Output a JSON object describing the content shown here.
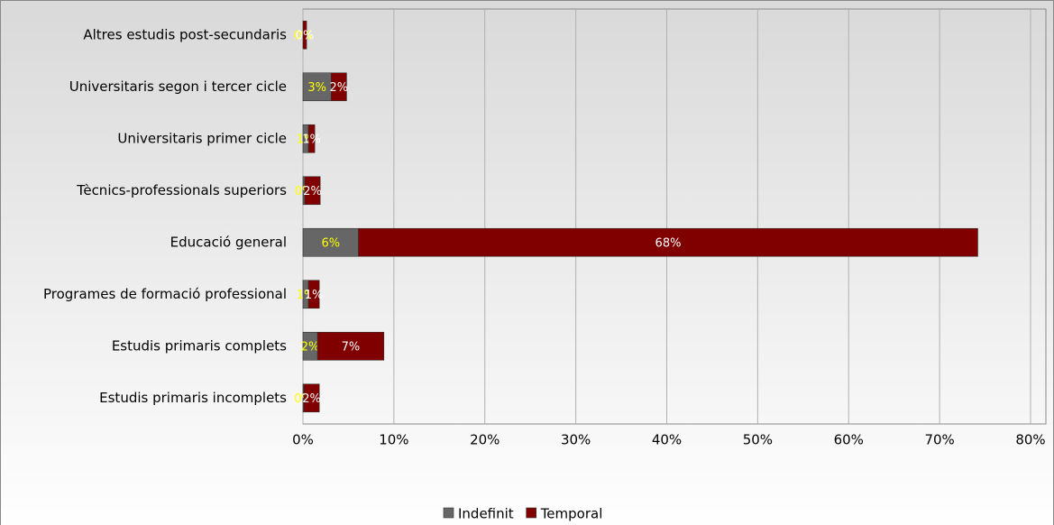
{
  "chart_data": {
    "type": "stacked-barh",
    "categories": [
      "Altres estudis post-secundaris",
      "Universitaris segon i tercer cicle",
      "Universitaris primer cicle",
      "Tècnics-professionals superiors",
      "Educació general",
      "Programes de formació professional",
      "Estudis primaris complets",
      "Estudis primaris incomplets"
    ],
    "series": [
      {
        "name": "Indefinit",
        "color": "#666666",
        "label_color": "#ffff00",
        "values": [
          0.0,
          3.1,
          0.6,
          0.2,
          6.1,
          0.6,
          1.6,
          0.1
        ],
        "value_labels": [
          "0%",
          "3%",
          "1%",
          "0%",
          "6%",
          "1%",
          "2%",
          "0%"
        ]
      },
      {
        "name": "Temporal",
        "color": "#800000",
        "label_color": "#ffffff",
        "values": [
          0.4,
          1.7,
          0.7,
          1.7,
          68.1,
          1.2,
          7.3,
          1.7
        ],
        "value_labels": [
          "0%",
          "2%",
          "1%",
          "2%",
          "68%",
          "1%",
          "7%",
          "2%"
        ]
      }
    ],
    "xlim": [
      0,
      80
    ],
    "xticks": [
      {
        "value": 0,
        "label": "0%"
      },
      {
        "value": 10,
        "label": "10%"
      },
      {
        "value": 20,
        "label": "20%"
      },
      {
        "value": 30,
        "label": "30%"
      },
      {
        "value": 40,
        "label": "40%"
      },
      {
        "value": 50,
        "label": "50%"
      },
      {
        "value": 60,
        "label": "60%"
      },
      {
        "value": 70,
        "label": "70%"
      },
      {
        "value": 80,
        "label": "80%"
      }
    ],
    "grid": true,
    "legend": "bottom"
  }
}
